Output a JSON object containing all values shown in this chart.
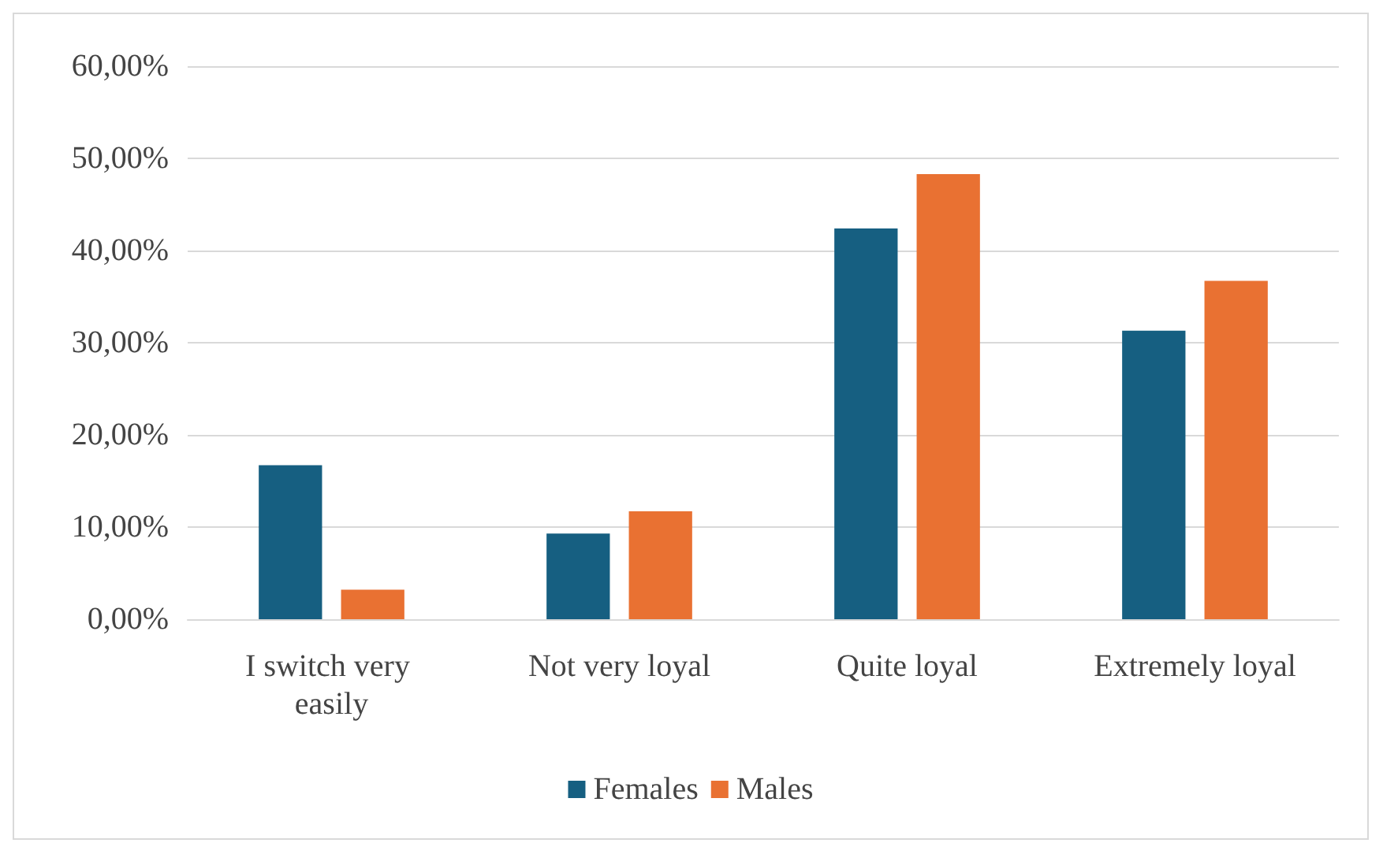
{
  "chart_data": {
    "type": "bar",
    "categories": [
      "I switch very easily",
      "Not very loyal",
      "Quite loyal",
      "Extremely loyal"
    ],
    "series": [
      {
        "name": "Females",
        "color": "#165f81",
        "values": [
          16.7,
          9.3,
          42.4,
          31.3
        ]
      },
      {
        "name": "Males",
        "color": "#e97132",
        "values": [
          3.2,
          11.7,
          48.3,
          36.7
        ]
      }
    ],
    "ylim": [
      0,
      60
    ],
    "yticks": [
      {
        "value": 0,
        "label": "0,00%"
      },
      {
        "value": 10,
        "label": "10,00%"
      },
      {
        "value": 20,
        "label": "20,00%"
      },
      {
        "value": 30,
        "label": "30,00%"
      },
      {
        "value": 40,
        "label": "40,00%"
      },
      {
        "value": 50,
        "label": "50,00%"
      },
      {
        "value": 60,
        "label": "60,00%"
      }
    ],
    "grid": "y",
    "legend": "bottom"
  }
}
